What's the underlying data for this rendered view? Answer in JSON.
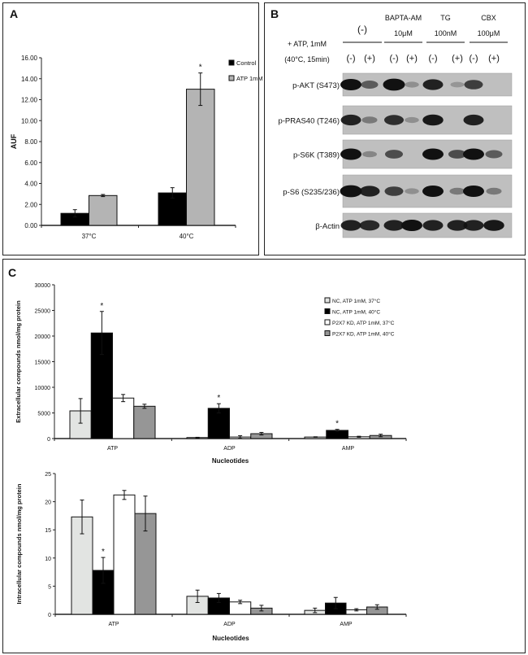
{
  "panels": {
    "a": "A",
    "b": "B",
    "c": "C"
  },
  "chart_data": [
    {
      "type": "bar",
      "panel": "A",
      "categories": [
        "37°C",
        "40°C"
      ],
      "ylabel": "AUF",
      "xlabel": "",
      "ylim": [
        0,
        16
      ],
      "yticks": [
        "0.00",
        "2.00",
        "4.00",
        "6.00",
        "8.00",
        "10.00",
        "12.00",
        "14.00",
        "16.00"
      ],
      "legend": "top-right",
      "series": [
        {
          "name": "Control",
          "color": "#000000",
          "values": [
            1.15,
            3.1
          ],
          "errors": [
            0.35,
            0.5
          ]
        },
        {
          "name": "ATP 1mM",
          "color": "#b4b4b4",
          "values": [
            2.85,
            13.0
          ],
          "errors": [
            0.1,
            1.55
          ]
        }
      ],
      "annotations": [
        {
          "category": "40°C",
          "series": 1,
          "text": "*"
        }
      ]
    },
    {
      "type": "bar",
      "panel": "C-top",
      "categories": [
        "ATP",
        "ADP",
        "AMP"
      ],
      "ylabel": "Extracellular compounds nmol/mg protein",
      "xlabel": "Nucleotides",
      "ylim": [
        0,
        30000
      ],
      "yticks": [
        "0",
        "5000",
        "10000",
        "15000",
        "20000",
        "25000",
        "30000"
      ],
      "legend": "top-right",
      "series": [
        {
          "name": "NC, ATP 1mM, 37°C",
          "color": "#e2e4e2",
          "values": [
            5400,
            200,
            300
          ],
          "errors": [
            2400,
            50,
            50
          ]
        },
        {
          "name": "NC, ATP 1mM, 40°C",
          "color": "#000000",
          "values": [
            20600,
            5900,
            1600
          ],
          "errors": [
            4200,
            900,
            200
          ]
        },
        {
          "name": "P2X7 KD, ATP 1mM, 37°C",
          "color": "#ffffff",
          "values": [
            7900,
            300,
            350
          ],
          "errors": [
            700,
            250,
            100
          ]
        },
        {
          "name": "P2X7 KD, ATP 1mM, 40°C",
          "color": "#969696",
          "values": [
            6300,
            950,
            600
          ],
          "errors": [
            400,
            250,
            250
          ]
        }
      ],
      "annotations": [
        {
          "category": "ATP",
          "series": 1,
          "text": "*"
        },
        {
          "category": "ADP",
          "series": 1,
          "text": "*"
        },
        {
          "category": "AMP",
          "series": 1,
          "text": "*"
        }
      ]
    },
    {
      "type": "bar",
      "panel": "C-bottom",
      "categories": [
        "ATP",
        "ADP",
        "AMP"
      ],
      "ylabel": "Intracellular compounds nmol/mg protein",
      "xlabel": "Nucleotides",
      "ylim": [
        0,
        25
      ],
      "yticks": [
        "0",
        "5",
        "10",
        "15",
        "20",
        "25"
      ],
      "series": [
        {
          "color": "#e2e4e2",
          "values": [
            17.3,
            3.2,
            0.7
          ],
          "errors": [
            3.0,
            1.1,
            0.4
          ]
        },
        {
          "color": "#000000",
          "values": [
            7.8,
            2.9,
            2.0
          ],
          "errors": [
            2.3,
            0.8,
            1.0
          ]
        },
        {
          "color": "#ffffff",
          "values": [
            21.2,
            2.2,
            0.8
          ],
          "errors": [
            0.8,
            0.3,
            0.2
          ]
        },
        {
          "color": "#969696",
          "values": [
            17.9,
            1.1,
            1.3
          ],
          "errors": [
            3.1,
            0.5,
            0.4
          ]
        }
      ],
      "annotations": [
        {
          "category": "ATP",
          "series": 1,
          "text": "*"
        }
      ]
    }
  ],
  "blot": {
    "treatment_label_1": "+ ATP, 1mM",
    "treatment_label_2": "(40°C, 15min)",
    "groups": [
      {
        "line1": "",
        "line2": "(-)"
      },
      {
        "line1": "BAPTA-AM",
        "line2": "10μM"
      },
      {
        "line1": "TG",
        "line2": "100nM"
      },
      {
        "line1": "CBX",
        "line2": "100μM"
      }
    ],
    "lanes": [
      "(-)",
      "(+)",
      "(-)",
      "(+)",
      "(-)",
      "(+)",
      "(-)",
      "(+)"
    ],
    "rows": [
      {
        "label": "p-AKT (S473)",
        "intensity": [
          1.0,
          0.5,
          1.1,
          0.15,
          0.9,
          0.1,
          0.7,
          0
        ]
      },
      {
        "label": "p-PRAS40 (T246)",
        "intensity": [
          0.9,
          0.3,
          0.8,
          0.15,
          0.95,
          0,
          0.9,
          0
        ]
      },
      {
        "label": "p-S6K (T389)",
        "intensity": [
          1.0,
          0.2,
          0.6,
          0,
          1.0,
          0.6,
          1.0,
          0.5
        ]
      },
      {
        "label": "p-S6 (S235/236)",
        "intensity": [
          1.1,
          0.9,
          0.7,
          0.15,
          1.0,
          0.3,
          1.0,
          0.3
        ]
      },
      {
        "label": "β-Actin",
        "intensity": [
          0.9,
          0.85,
          0.9,
          1.0,
          0.9,
          0.9,
          0.9,
          0.95
        ]
      }
    ]
  }
}
